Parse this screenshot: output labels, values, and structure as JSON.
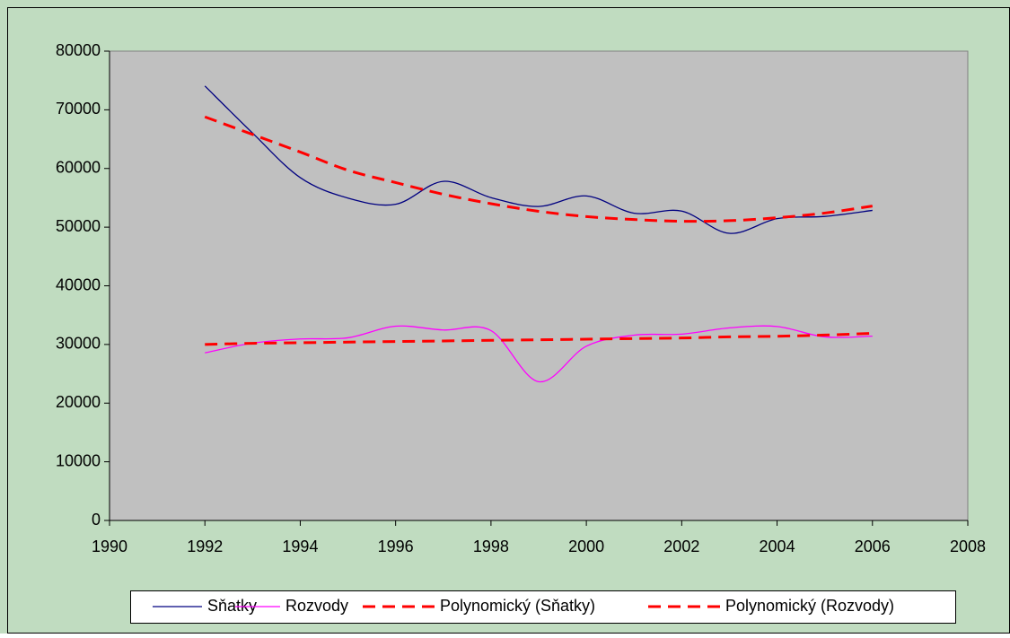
{
  "chart_data": {
    "type": "line",
    "x": [
      1992,
      1993,
      1994,
      1995,
      1996,
      1997,
      1998,
      1999,
      2000,
      2001,
      2002,
      2003,
      2004,
      2005,
      2006
    ],
    "series": [
      {
        "name": "Sňatky",
        "color": "#000080",
        "dashed": false,
        "smooth": true,
        "values": [
          74060,
          66033,
          58440,
          54956,
          53896,
          57804,
          55027,
          53523,
          55321,
          52374,
          52732,
          48943,
          51447,
          51829,
          52860
        ]
      },
      {
        "name": "Rozvody",
        "color": "#ff00ff",
        "dashed": false,
        "smooth": true,
        "values": [
          28572,
          30227,
          30939,
          31135,
          33113,
          32465,
          32363,
          23657,
          29704,
          31586,
          31758,
          32824,
          33060,
          31288,
          31415
        ]
      },
      {
        "name": "Polynomický (Sňatky)",
        "color": "#ff0000",
        "dashed": true,
        "smooth": true,
        "values": [
          68800,
          65800,
          62800,
          59700,
          57600,
          55600,
          54000,
          52700,
          51800,
          51300,
          51000,
          51100,
          51600,
          52400,
          53600
        ]
      },
      {
        "name": "Polynomický (Rozvody)",
        "color": "#ff0000",
        "dashed": true,
        "smooth": true,
        "values": [
          30000,
          30200,
          30300,
          30400,
          30500,
          30600,
          30700,
          30800,
          30900,
          31000,
          31100,
          31300,
          31400,
          31600,
          31900
        ]
      }
    ],
    "xlim": [
      1990,
      2008
    ],
    "xticks": [
      1990,
      1992,
      1994,
      1996,
      1998,
      2000,
      2002,
      2004,
      2006,
      2008
    ],
    "ylim": [
      0,
      80000
    ],
    "yticks": [
      0,
      10000,
      20000,
      30000,
      40000,
      50000,
      60000,
      70000,
      80000
    ],
    "grid": false,
    "legend": "bottom"
  }
}
